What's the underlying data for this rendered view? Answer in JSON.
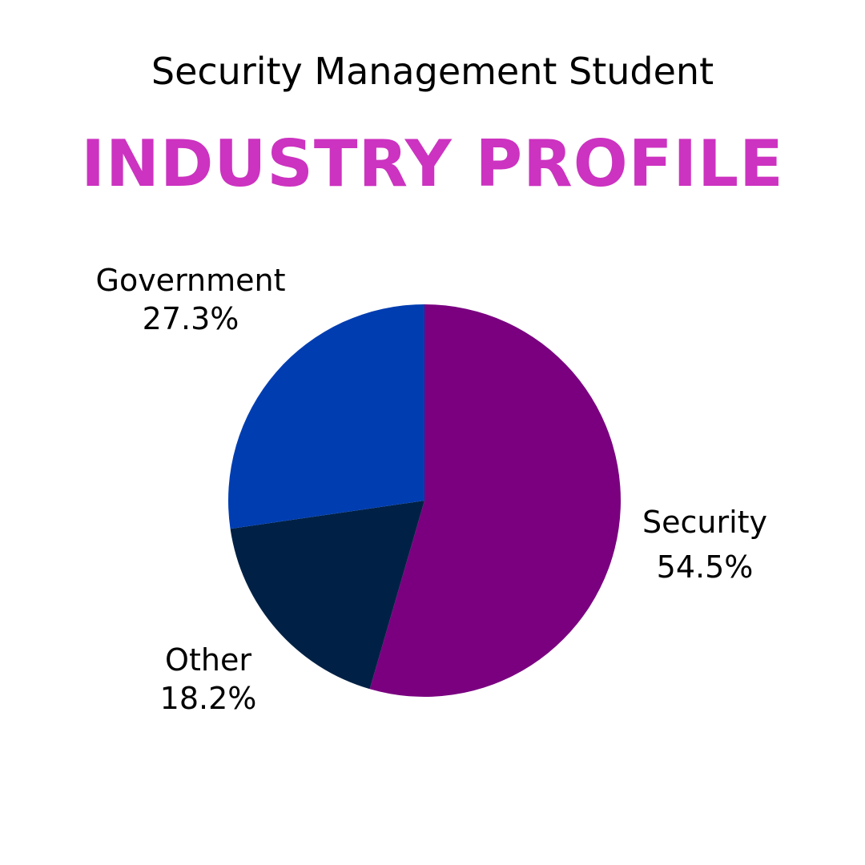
{
  "chart_data": {
    "type": "pie",
    "subtitle": "Security Management Student",
    "title": "INDUSTRY PROFILE",
    "title_color": "#CC33C0",
    "start": "top",
    "direction": "clockwise",
    "slices": [
      {
        "label": "Security",
        "value": 54.5,
        "display": "54.5%",
        "color": "#7A0080"
      },
      {
        "label": "Other",
        "value": 18.2,
        "display": "18.2%",
        "color": "#002145"
      },
      {
        "label": "Government",
        "value": 27.3,
        "display": "27.3%",
        "color": "#003DB1"
      }
    ]
  }
}
